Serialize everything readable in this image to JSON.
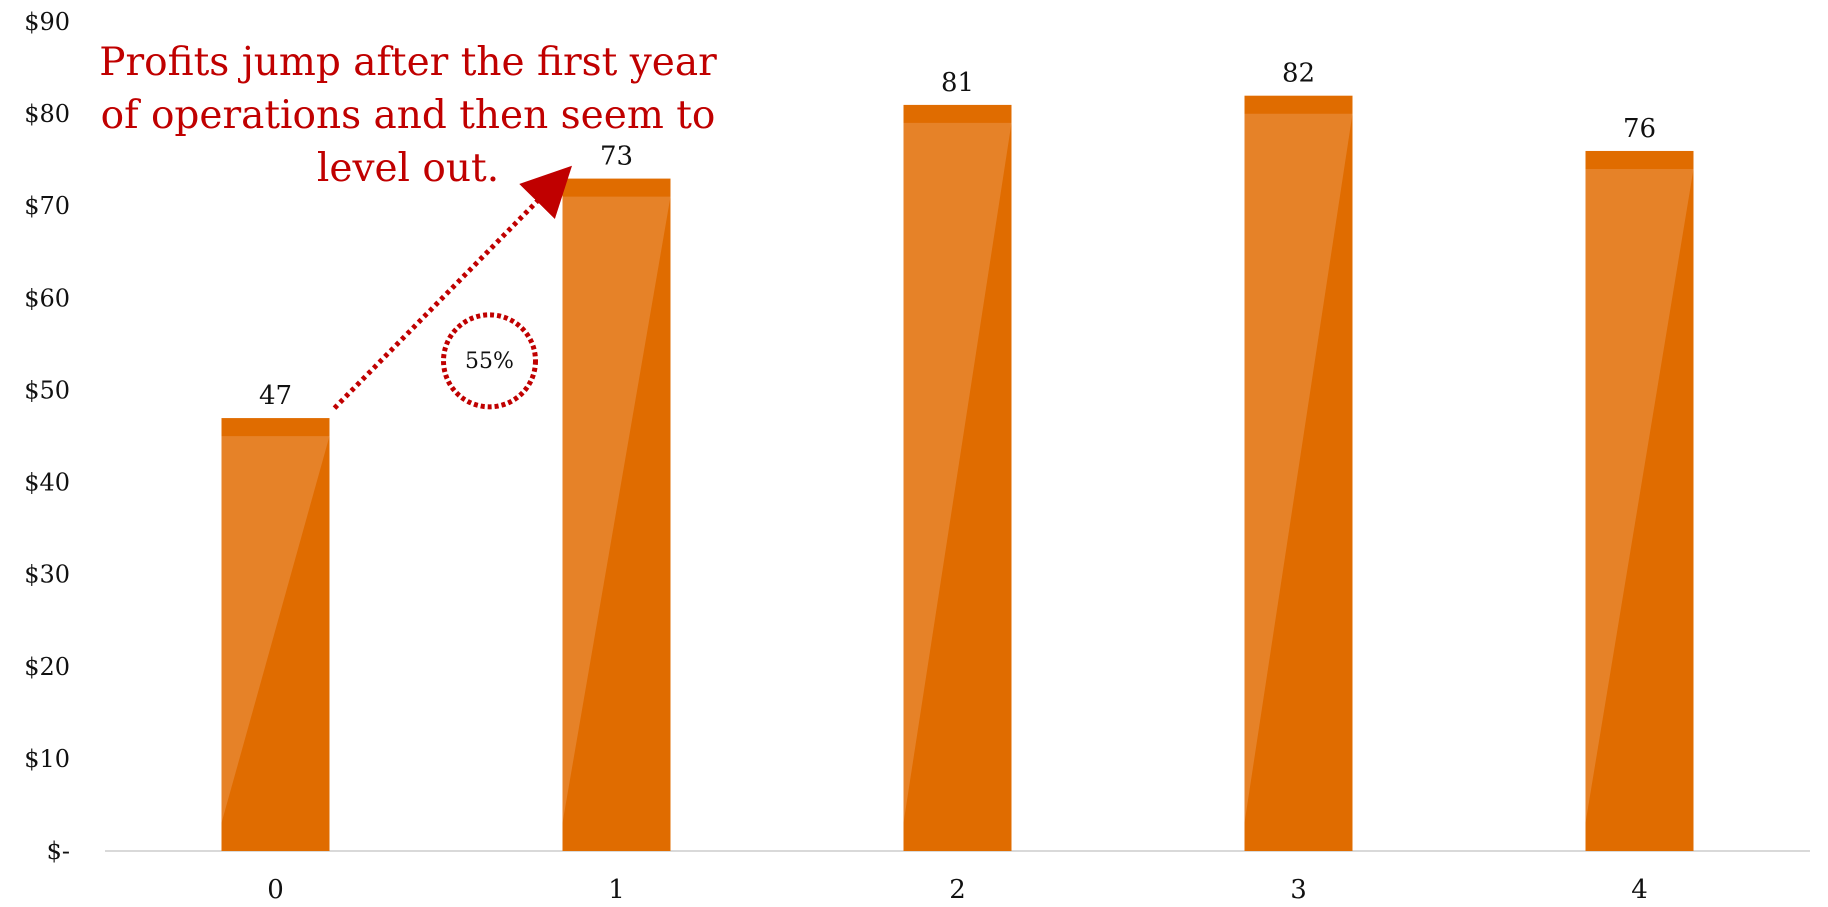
{
  "colors": {
    "bar": "#e06c00",
    "bar_highlight": "#e88a35",
    "annotation": "#c00000",
    "axis": "#d9d9d9"
  },
  "chart_data": {
    "type": "bar",
    "categories": [
      "0",
      "1",
      "2",
      "3",
      "4"
    ],
    "values": [
      47,
      73,
      81,
      82,
      76
    ],
    "data_labels": [
      "47",
      "73",
      "81",
      "82",
      "76"
    ],
    "ylim": [
      0,
      90
    ],
    "yticks": [
      0,
      10,
      20,
      30,
      40,
      50,
      60,
      70,
      80,
      90
    ],
    "ytick_labels": [
      "$-",
      "$10",
      "$20",
      "$30",
      "$40",
      "$50",
      "$60",
      "$70",
      "$80",
      "$90"
    ],
    "grid": false,
    "legend": "none",
    "annotations": {
      "text": "Profits jump after the first year of operations and then seem to level out.",
      "growth_label": "55%",
      "arrow_from_category": "0",
      "arrow_to_category": "1"
    }
  }
}
